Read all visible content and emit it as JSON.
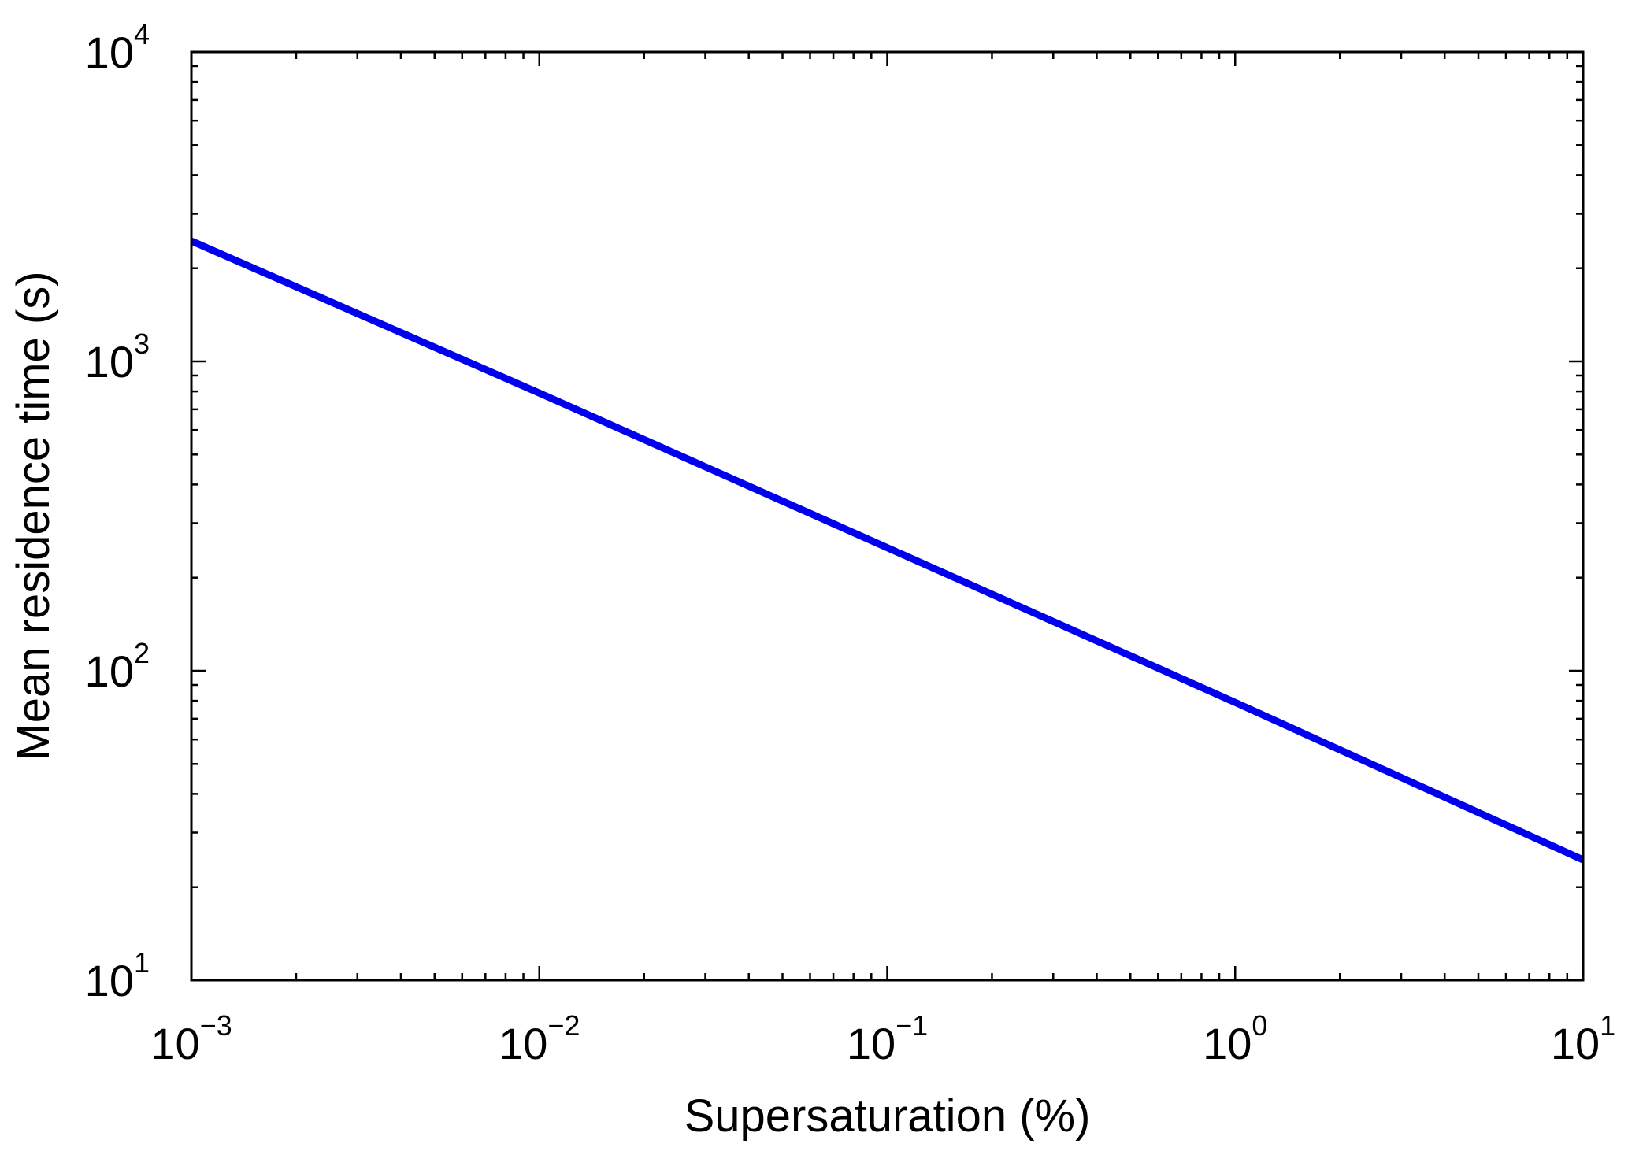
{
  "chart_data": {
    "type": "line",
    "title": "",
    "xlabel": "Supersaturation (%)",
    "ylabel": "Mean residence time (s)",
    "xscale": "log",
    "yscale": "log",
    "xlim": [
      0.001,
      10
    ],
    "ylim": [
      10,
      10000
    ],
    "grid": false,
    "legend": "none",
    "x_ticks": [
      {
        "value": 0.001,
        "base": "10",
        "exp": "−3"
      },
      {
        "value": 0.01,
        "base": "10",
        "exp": "−2"
      },
      {
        "value": 0.1,
        "base": "10",
        "exp": "−1"
      },
      {
        "value": 1,
        "base": "10",
        "exp": "0"
      },
      {
        "value": 10,
        "base": "10",
        "exp": "1"
      }
    ],
    "y_ticks": [
      {
        "value": 10,
        "base": "10",
        "exp": "1"
      },
      {
        "value": 100,
        "base": "10",
        "exp": "2"
      },
      {
        "value": 1000,
        "base": "10",
        "exp": "3"
      },
      {
        "value": 10000,
        "base": "10",
        "exp": "4"
      }
    ],
    "series": [
      {
        "color": "#0000ee",
        "x": [
          0.001,
          0.01,
          0.1,
          1,
          10
        ],
        "y": [
          2450,
          790,
          250,
          79,
          24.5
        ]
      }
    ]
  }
}
